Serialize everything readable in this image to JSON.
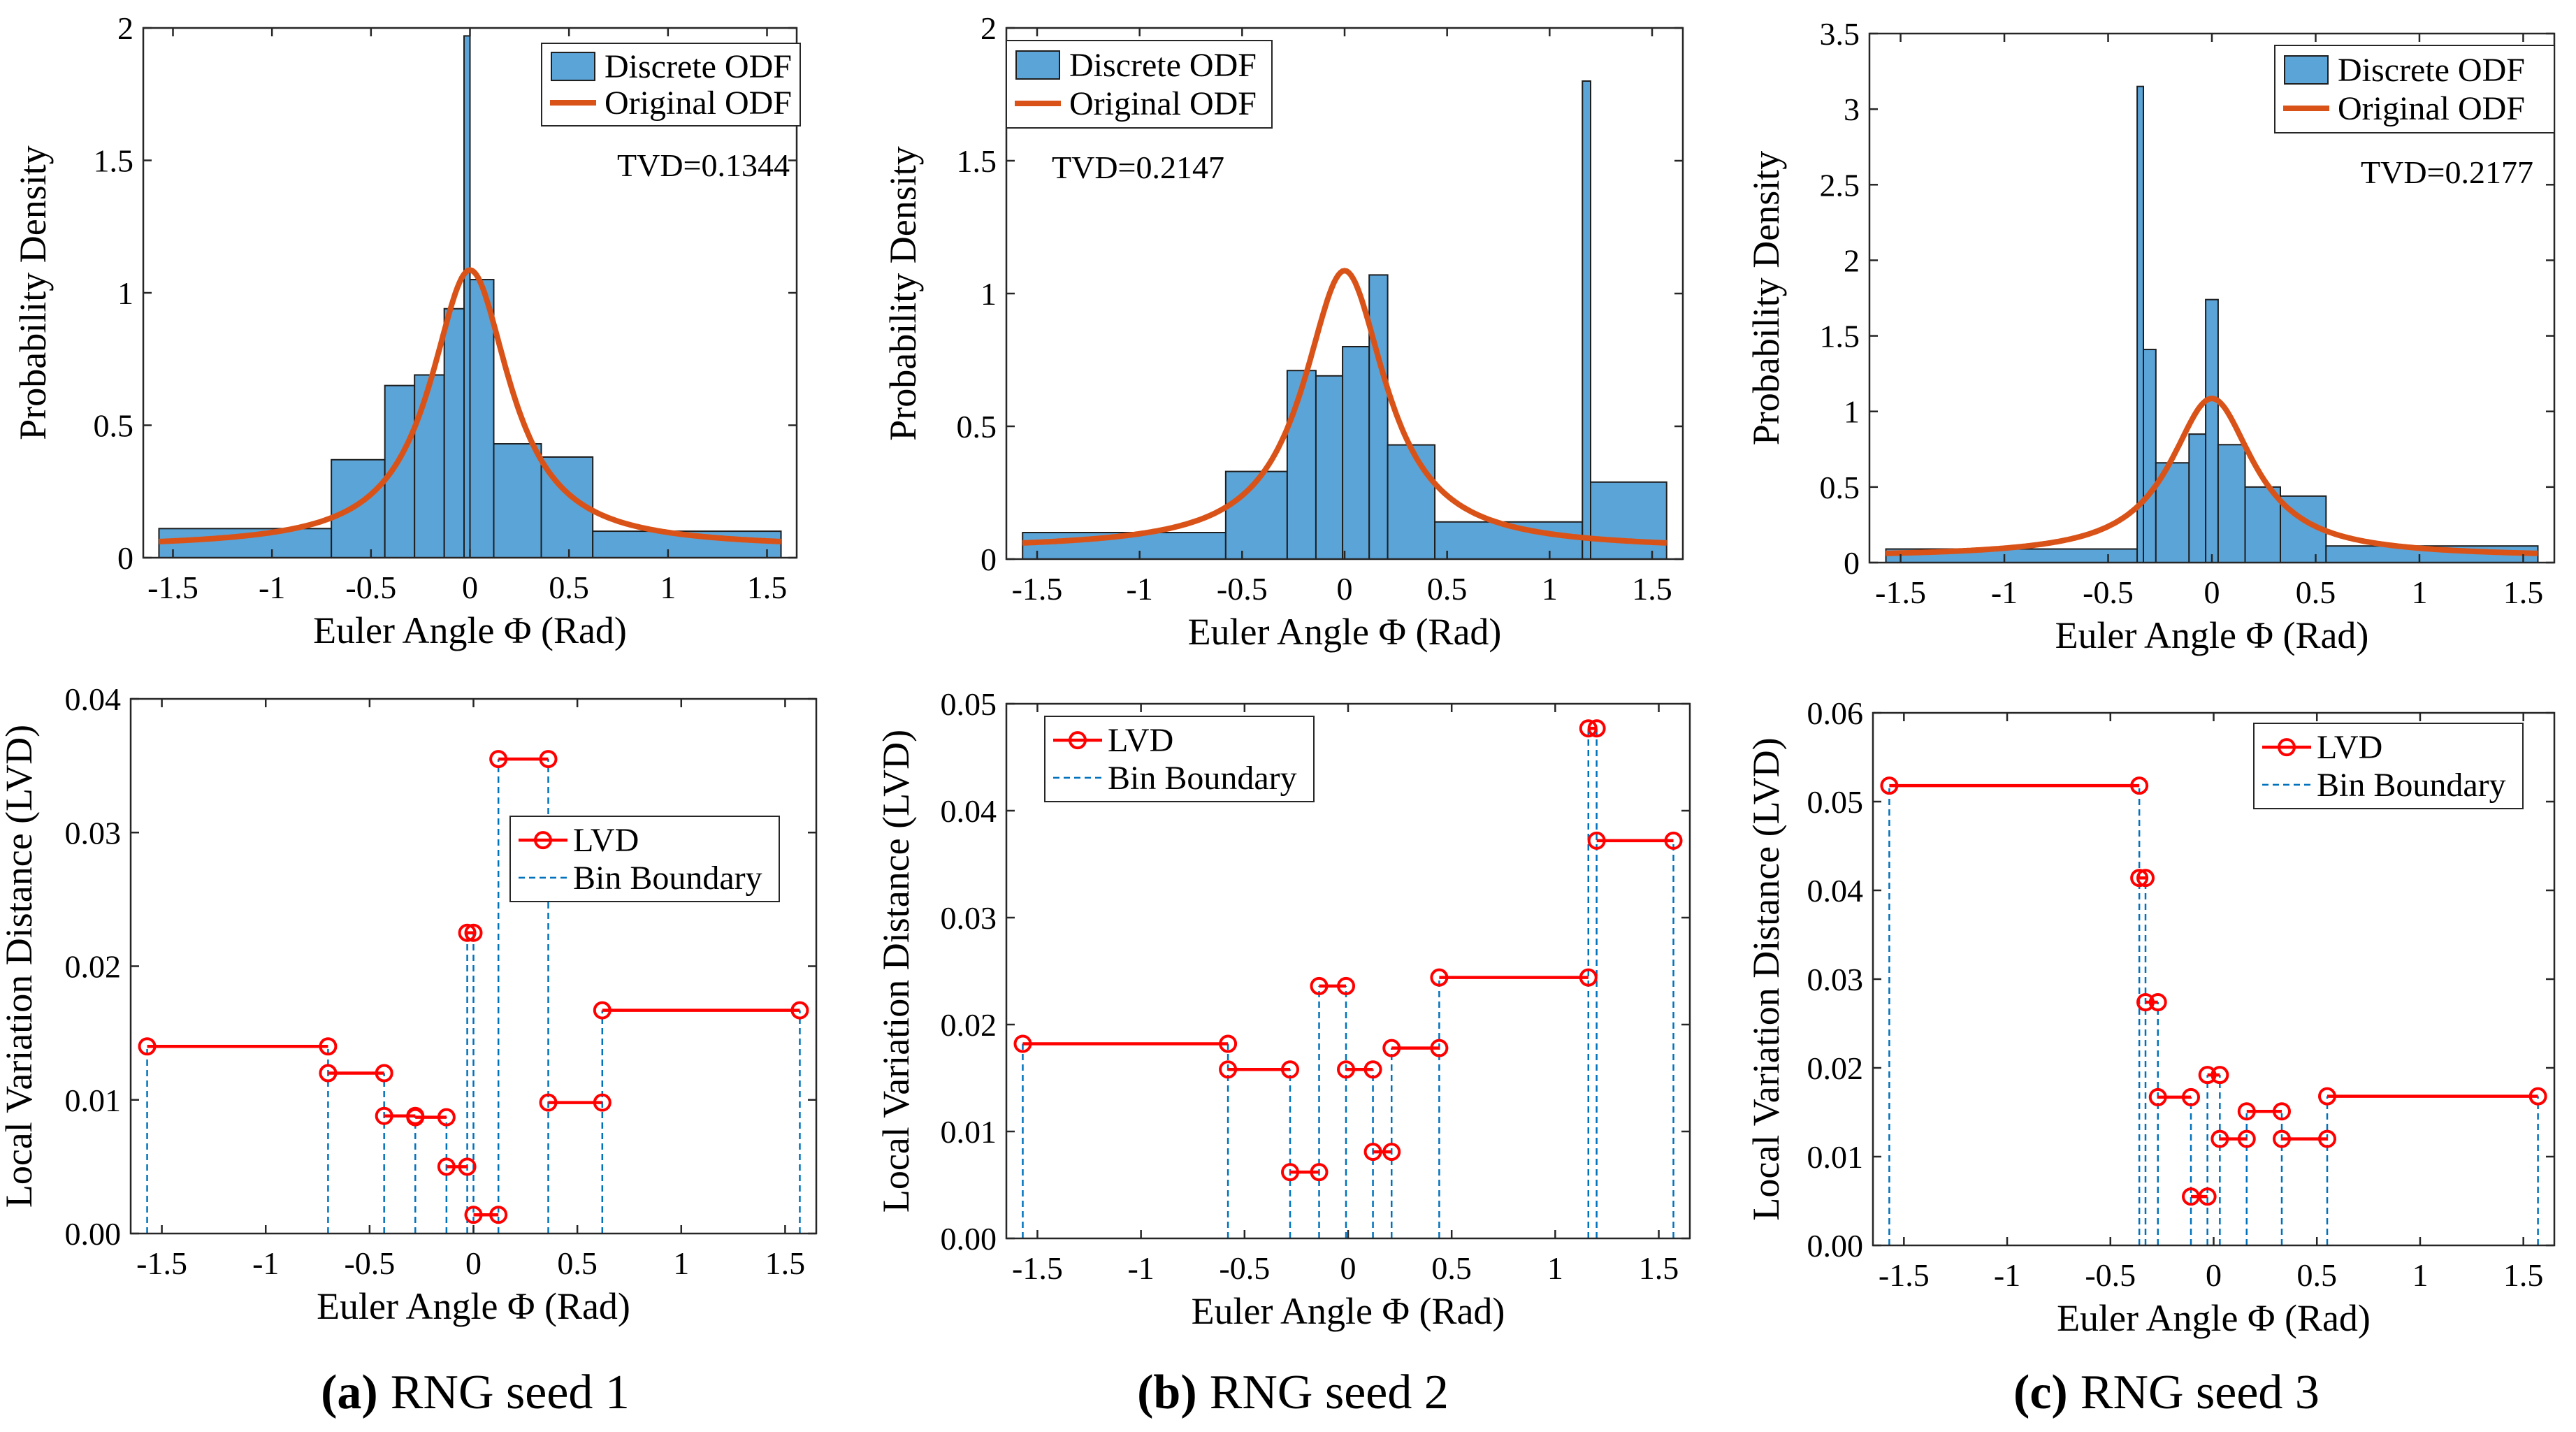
{
  "colors": {
    "bar_fill": "#5ba4d8",
    "bar_stroke": "#1e1e1e",
    "odf_line": "#d95319",
    "lvd": "#ff0000",
    "bin_boundary": "#0072bd"
  },
  "captions": [
    {
      "letter": "(a)",
      "text": "RNG seed 1"
    },
    {
      "letter": "(b)",
      "text": "RNG seed 2"
    },
    {
      "letter": "(c)",
      "text": "RNG seed 3"
    }
  ],
  "chart_data": [
    {
      "id": "a-hist",
      "type": "bar",
      "xlabel": "Euler Angle Φ (Rad)",
      "ylabel": "Probability Density",
      "xlim": [
        -1.65,
        1.65
      ],
      "ylim": [
        0,
        2
      ],
      "xticks": [
        -1.5,
        -1,
        -0.5,
        0,
        0.5,
        1,
        1.5
      ],
      "yticks": [
        0,
        0.5,
        1,
        1.5,
        2
      ],
      "legend": [
        "Discrete ODF",
        "Original ODF"
      ],
      "legend_position": "top-right",
      "annotation": "TVD=0.1344",
      "bins": [
        {
          "x0": -1.5708,
          "x1": -0.7,
          "y": 0.11
        },
        {
          "x0": -0.7,
          "x1": -0.43,
          "y": 0.37
        },
        {
          "x0": -0.43,
          "x1": -0.28,
          "y": 0.65
        },
        {
          "x0": -0.28,
          "x1": -0.13,
          "y": 0.69
        },
        {
          "x0": -0.13,
          "x1": -0.03,
          "y": 0.94
        },
        {
          "x0": -0.03,
          "x1": 0.0,
          "y": 1.97
        },
        {
          "x0": 0.0,
          "x1": 0.12,
          "y": 1.05
        },
        {
          "x0": 0.12,
          "x1": 0.36,
          "y": 0.43
        },
        {
          "x0": 0.36,
          "x1": 0.62,
          "y": 0.38
        },
        {
          "x0": 0.62,
          "x1": 1.5708,
          "y": 0.1
        }
      ]
    },
    {
      "id": "b-hist",
      "type": "bar",
      "xlabel": "Euler Angle Φ (Rad)",
      "ylabel": "Probability Density",
      "xlim": [
        -1.65,
        1.65
      ],
      "ylim": [
        0,
        2
      ],
      "xticks": [
        -1.5,
        -1,
        -0.5,
        0,
        0.5,
        1,
        1.5
      ],
      "yticks": [
        0,
        0.5,
        1,
        1.5,
        2
      ],
      "legend": [
        "Discrete ODF",
        "Original ODF"
      ],
      "legend_position": "top-left",
      "annotation": "TVD=0.2147",
      "bins": [
        {
          "x0": -1.5708,
          "x1": -0.58,
          "y": 0.1
        },
        {
          "x0": -0.58,
          "x1": -0.28,
          "y": 0.33
        },
        {
          "x0": -0.28,
          "x1": -0.14,
          "y": 0.71
        },
        {
          "x0": -0.14,
          "x1": -0.01,
          "y": 0.69
        },
        {
          "x0": -0.01,
          "x1": 0.12,
          "y": 0.8
        },
        {
          "x0": 0.12,
          "x1": 0.21,
          "y": 1.07
        },
        {
          "x0": 0.21,
          "x1": 0.44,
          "y": 0.43
        },
        {
          "x0": 0.44,
          "x1": 1.16,
          "y": 0.14
        },
        {
          "x0": 1.16,
          "x1": 1.2,
          "y": 1.8
        },
        {
          "x0": 1.2,
          "x1": 1.5708,
          "y": 0.29
        }
      ]
    },
    {
      "id": "c-hist",
      "type": "bar",
      "xlabel": "Euler Angle Φ (Rad)",
      "ylabel": "Probability Density",
      "xlim": [
        -1.65,
        1.65
      ],
      "ylim": [
        0,
        3.5
      ],
      "xticks": [
        -1.5,
        -1,
        -0.5,
        0,
        0.5,
        1,
        1.5
      ],
      "yticks": [
        0,
        0.5,
        1,
        1.5,
        2,
        2.5,
        3,
        3.5
      ],
      "legend": [
        "Discrete ODF",
        "Original ODF"
      ],
      "legend_position": "top-right",
      "annotation": "TVD=0.2177",
      "bins": [
        {
          "x0": -1.5708,
          "x1": -0.36,
          "y": 0.09
        },
        {
          "x0": -0.36,
          "x1": -0.33,
          "y": 3.15
        },
        {
          "x0": -0.33,
          "x1": -0.27,
          "y": 1.41
        },
        {
          "x0": -0.27,
          "x1": -0.11,
          "y": 0.66
        },
        {
          "x0": -0.11,
          "x1": -0.03,
          "y": 0.85
        },
        {
          "x0": -0.03,
          "x1": 0.03,
          "y": 1.74
        },
        {
          "x0": 0.03,
          "x1": 0.16,
          "y": 0.78
        },
        {
          "x0": 0.16,
          "x1": 0.33,
          "y": 0.5
        },
        {
          "x0": 0.33,
          "x1": 0.55,
          "y": 0.44
        },
        {
          "x0": 0.55,
          "x1": 1.5708,
          "y": 0.11
        }
      ]
    },
    {
      "id": "a-lvd",
      "type": "line",
      "xlabel": "Euler Angle Φ (Rad)",
      "ylabel": "Local Variation Distance (LVD)",
      "xlim": [
        -1.65,
        1.65
      ],
      "ylim": [
        0,
        0.04
      ],
      "xticks": [
        -1.5,
        -1,
        -0.5,
        0,
        0.5,
        1,
        1.5
      ],
      "yticks": [
        0,
        0.01,
        0.02,
        0.03,
        0.04
      ],
      "ytick_labels": [
        "0.00",
        "0.01",
        "0.02",
        "0.03",
        "0.04"
      ],
      "legend": [
        "LVD",
        "Bin Boundary"
      ],
      "legend_position": "center-right",
      "segments": [
        {
          "x0": -1.5708,
          "x1": -0.7,
          "y": 0.014
        },
        {
          "x0": -0.7,
          "x1": -0.43,
          "y": 0.012
        },
        {
          "x0": -0.43,
          "x1": -0.28,
          "y": 0.0088
        },
        {
          "x0": -0.28,
          "x1": -0.13,
          "y": 0.0087
        },
        {
          "x0": -0.13,
          "x1": -0.03,
          "y": 0.005
        },
        {
          "x0": -0.03,
          "x1": 0.0,
          "y": 0.0225
        },
        {
          "x0": 0.0,
          "x1": 0.12,
          "y": 0.0014
        },
        {
          "x0": 0.12,
          "x1": 0.36,
          "y": 0.0355
        },
        {
          "x0": 0.36,
          "x1": 0.62,
          "y": 0.0098
        },
        {
          "x0": 0.62,
          "x1": 1.5708,
          "y": 0.0167
        }
      ]
    },
    {
      "id": "b-lvd",
      "type": "line",
      "xlabel": "Euler Angle Φ (Rad)",
      "ylabel": "Local Variation Distance (LVD)",
      "xlim": [
        -1.65,
        1.65
      ],
      "ylim": [
        0,
        0.05
      ],
      "xticks": [
        -1.5,
        -1,
        -0.5,
        0,
        0.5,
        1,
        1.5
      ],
      "yticks": [
        0,
        0.01,
        0.02,
        0.03,
        0.04,
        0.05
      ],
      "ytick_labels": [
        "0.00",
        "0.01",
        "0.02",
        "0.03",
        "0.04",
        "0.05"
      ],
      "legend": [
        "LVD",
        "Bin Boundary"
      ],
      "legend_position": "top-left",
      "segments": [
        {
          "x0": -1.5708,
          "x1": -0.58,
          "y": 0.0182
        },
        {
          "x0": -0.58,
          "x1": -0.28,
          "y": 0.0158
        },
        {
          "x0": -0.28,
          "x1": -0.14,
          "y": 0.0062
        },
        {
          "x0": -0.14,
          "x1": -0.01,
          "y": 0.0236
        },
        {
          "x0": -0.01,
          "x1": 0.12,
          "y": 0.0158
        },
        {
          "x0": 0.12,
          "x1": 0.21,
          "y": 0.0081
        },
        {
          "x0": 0.21,
          "x1": 0.44,
          "y": 0.0178
        },
        {
          "x0": 0.44,
          "x1": 1.16,
          "y": 0.0244
        },
        {
          "x0": 1.16,
          "x1": 1.2,
          "y": 0.0477
        },
        {
          "x0": 1.2,
          "x1": 1.5708,
          "y": 0.0372
        }
      ]
    },
    {
      "id": "c-lvd",
      "type": "line",
      "xlabel": "Euler Angle Φ (Rad)",
      "ylabel": "Local Variation Distance (LVD)",
      "xlim": [
        -1.65,
        1.65
      ],
      "ylim": [
        0,
        0.06
      ],
      "xticks": [
        -1.5,
        -1,
        -0.5,
        0,
        0.5,
        1,
        1.5
      ],
      "yticks": [
        0,
        0.01,
        0.02,
        0.03,
        0.04,
        0.05,
        0.06
      ],
      "ytick_labels": [
        "0.00",
        "0.01",
        "0.02",
        "0.03",
        "0.04",
        "0.05",
        "0.06"
      ],
      "legend": [
        "LVD",
        "Bin Boundary"
      ],
      "legend_position": "top-right",
      "segments": [
        {
          "x0": -1.5708,
          "x1": -0.36,
          "y": 0.0518
        },
        {
          "x0": -0.36,
          "x1": -0.33,
          "y": 0.0414
        },
        {
          "x0": -0.33,
          "x1": -0.27,
          "y": 0.0274
        },
        {
          "x0": -0.27,
          "x1": -0.11,
          "y": 0.0167
        },
        {
          "x0": -0.11,
          "x1": -0.03,
          "y": 0.0055
        },
        {
          "x0": -0.03,
          "x1": 0.03,
          "y": 0.0192
        },
        {
          "x0": 0.03,
          "x1": 0.16,
          "y": 0.012
        },
        {
          "x0": 0.16,
          "x1": 0.33,
          "y": 0.0151
        },
        {
          "x0": 0.33,
          "x1": 0.55,
          "y": 0.012
        },
        {
          "x0": 0.55,
          "x1": 1.5708,
          "y": 0.0168
        }
      ]
    }
  ]
}
